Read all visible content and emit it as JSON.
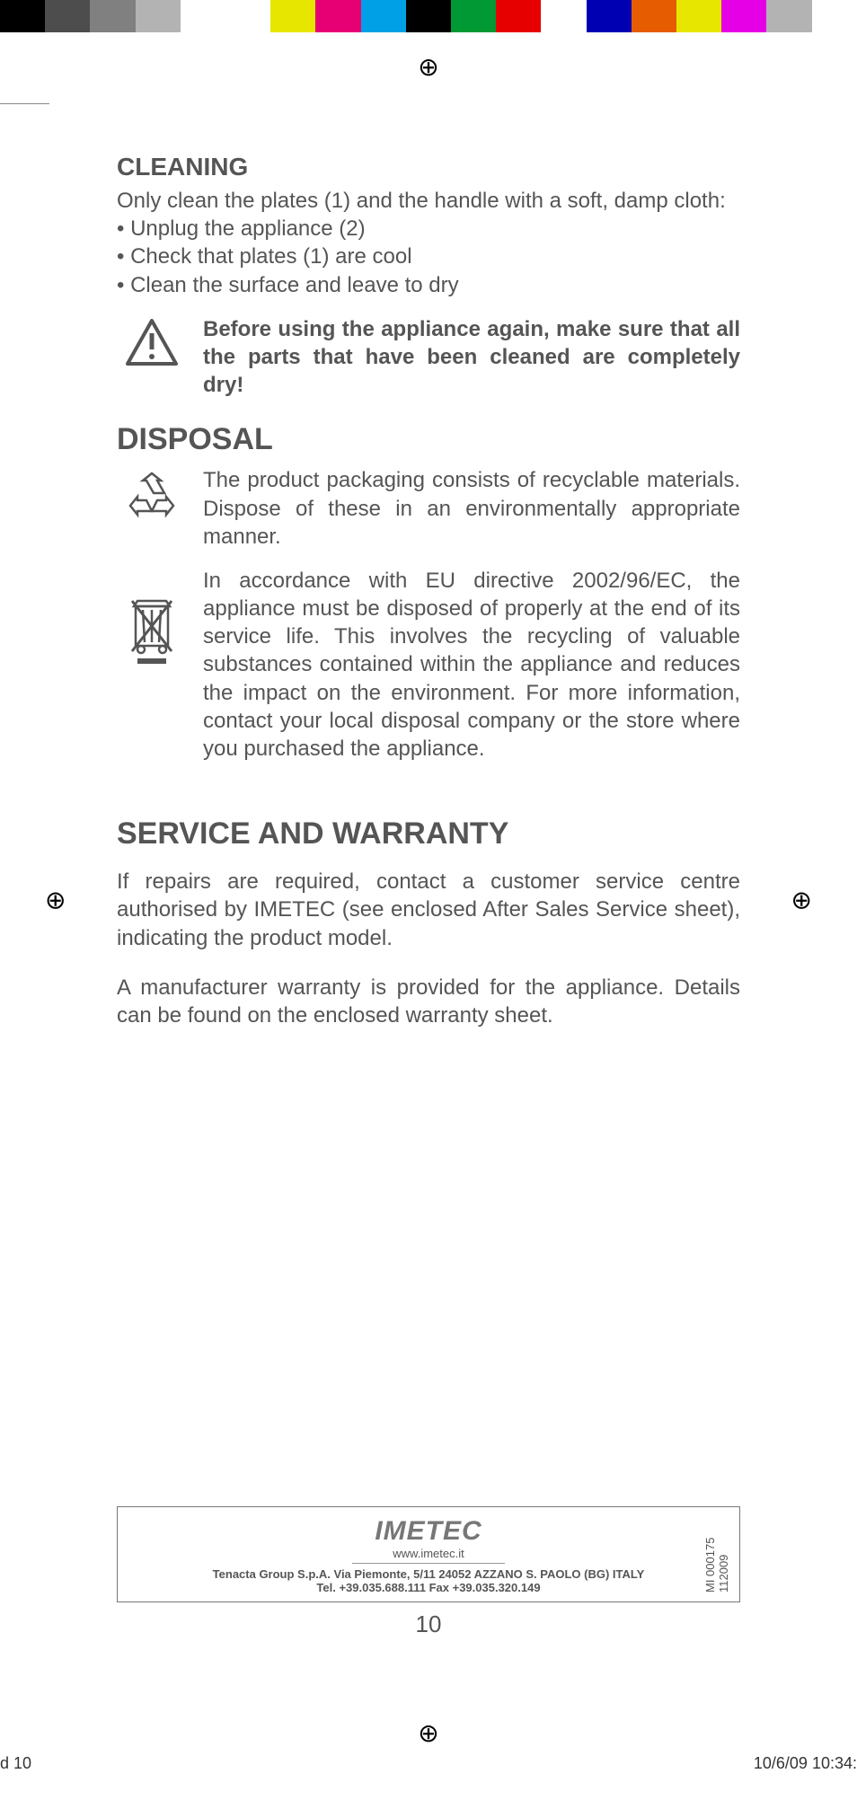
{
  "color_bar": [
    "#000000",
    "#4d4d4d",
    "#808080",
    "#b3b3b3",
    "#ffffff",
    "#ffffff",
    "#e6e600",
    "#e60073",
    "#00a0e6",
    "#000000",
    "#009933",
    "#e60000",
    "#ffffff",
    "#0000b3",
    "#e65c00",
    "#e6e600",
    "#e600e6",
    "#b3b3b3",
    "#ffffff"
  ],
  "cleaning": {
    "heading": "CLEANING",
    "intro": "Only clean the plates (1) and the handle with a soft, damp cloth:",
    "bullets": [
      "• Unplug the appliance (2)",
      "• Check that plates (1) are cool",
      "• Clean the surface and leave to dry"
    ],
    "warning": "Before using the appliance again, make sure that all the parts that have been cleaned are completely dry!"
  },
  "disposal": {
    "heading": "DISPOSAL",
    "recycle_text": "The product packaging consists of recyclable materials. Dispose of these in an environmentally appropriate manner.",
    "weee_text": "In accordance with EU directive 2002/96/EC, the appliance must be disposed of properly at the end of its service life. This involves the recycling of valuable substances contained within the appliance and reduces the impact on the environment. For more information, contact your local disposal company or the store where you purchased the appliance."
  },
  "service": {
    "heading": "SERVICE AND WARRANTY",
    "p1": "If repairs are required, contact a customer service centre authorised by IMETEC (see enclosed After Sales Service sheet), indicating the product model.",
    "p2": "A manufacturer warranty is provided for the appliance. Details can be found on the enclosed warranty sheet."
  },
  "footer": {
    "logo": "IMETEC",
    "url": "www.imetec.it",
    "addr1": "Tenacta Group S.p.A.  Via Piemonte, 5/11  24052 AZZANO S. PAOLO (BG) ITALY",
    "addr2": "Tel. +39.035.688.111          Fax +39.035.320.149",
    "code": "MI 000175 112009"
  },
  "page_number": "10",
  "meta_left": "d   10",
  "meta_right": "10/6/09   10:34:"
}
